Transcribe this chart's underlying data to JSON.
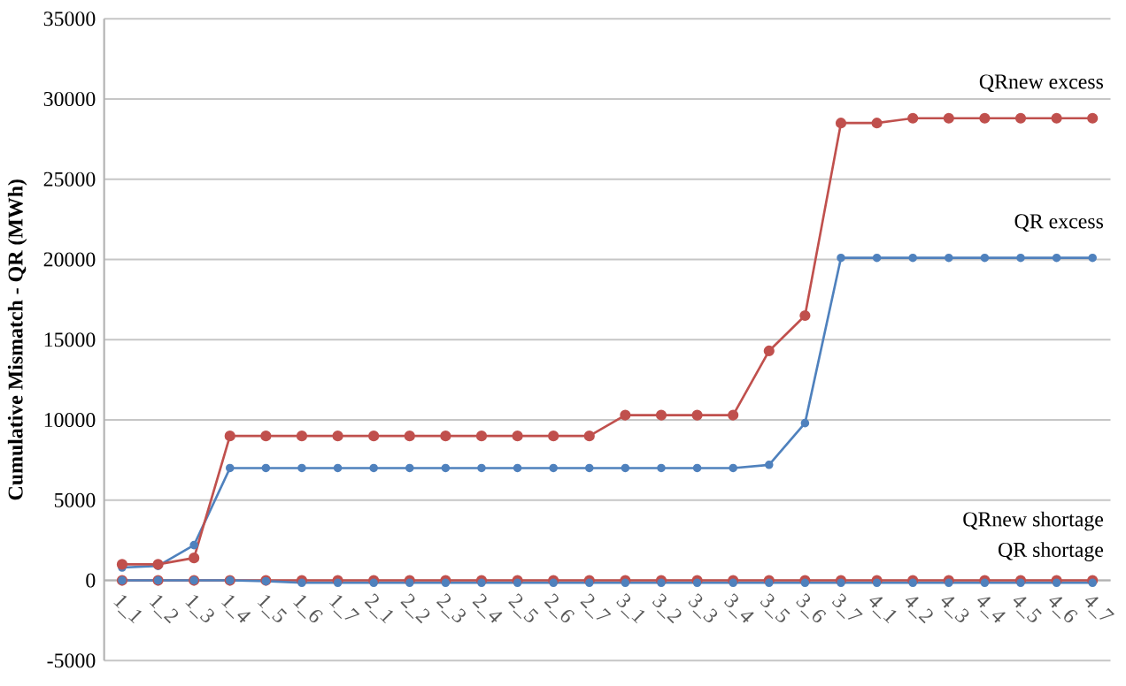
{
  "chart_data": {
    "type": "line",
    "ylabel": "Cumulative Mismatch - QR (MWh)",
    "categories": [
      "1_1",
      "1_2",
      "1_3",
      "1_4",
      "1_5",
      "1_6",
      "1_7",
      "2_1",
      "2_2",
      "2_3",
      "2_4",
      "2_5",
      "2_6",
      "2_7",
      "3_1",
      "3_2",
      "3_3",
      "3_4",
      "3_5",
      "3_6",
      "3_7",
      "4_1",
      "4_2",
      "4_3",
      "4_4",
      "4_5",
      "4_6",
      "4_7"
    ],
    "series": [
      {
        "name": "QRnew excess",
        "color": "#c0504d",
        "values": [
          1000,
          1000,
          1400,
          9000,
          9000,
          9000,
          9000,
          9000,
          9000,
          9000,
          9000,
          9000,
          9000,
          9000,
          10300,
          10300,
          10300,
          10300,
          14300,
          16500,
          28500,
          28500,
          28800,
          28800,
          28800,
          28800,
          28800,
          28800
        ]
      },
      {
        "name": "QR excess",
        "color": "#4f81bd",
        "values": [
          800,
          900,
          2200,
          7000,
          7000,
          7000,
          7000,
          7000,
          7000,
          7000,
          7000,
          7000,
          7000,
          7000,
          7000,
          7000,
          7000,
          7000,
          7200,
          9800,
          20100,
          20100,
          20100,
          20100,
          20100,
          20100,
          20100,
          20100
        ]
      },
      {
        "name": "QRnew shortage",
        "color": "#c0504d",
        "values": [
          0,
          0,
          0,
          0,
          0,
          0,
          0,
          0,
          0,
          0,
          0,
          0,
          0,
          0,
          0,
          0,
          0,
          0,
          0,
          0,
          0,
          0,
          0,
          0,
          0,
          0,
          0,
          0
        ]
      },
      {
        "name": "QR shortage",
        "color": "#4f81bd",
        "values": [
          0,
          0,
          0,
          0,
          -50,
          -150,
          -150,
          -150,
          -150,
          -150,
          -150,
          -150,
          -150,
          -150,
          -150,
          -150,
          -150,
          -150,
          -150,
          -150,
          -150,
          -150,
          -150,
          -150,
          -150,
          -150,
          -150,
          -150
        ]
      }
    ],
    "ylim": [
      -5000,
      35000
    ],
    "yticks": [
      -5000,
      0,
      5000,
      10000,
      15000,
      20000,
      25000,
      30000,
      35000
    ],
    "grid": "y",
    "legend": false,
    "marker": "circle",
    "line_style": "solid"
  }
}
